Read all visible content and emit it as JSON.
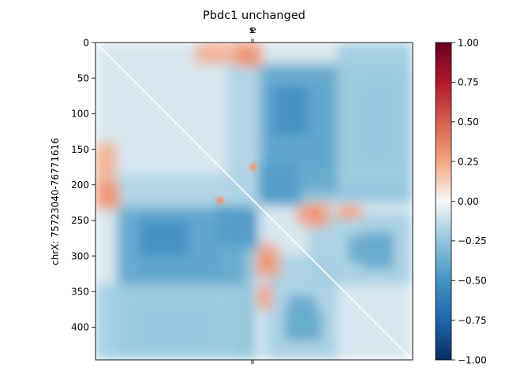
{
  "chart_data": {
    "type": "heatmap",
    "title": "Pbdc1 unchanged",
    "ylabel": "chrX: 75723040-76771616",
    "top_tick_labels": [
      "s",
      "e"
    ],
    "yticks": [
      0,
      50,
      100,
      150,
      200,
      250,
      300,
      350,
      400
    ],
    "ytick_labels": [
      "0",
      "50",
      "100",
      "150",
      "200",
      "250",
      "300",
      "350",
      "400"
    ],
    "matrix_size": 446,
    "colormap": "RdBu_r",
    "colorbar": {
      "vmin": -1.0,
      "vmax": 1.0,
      "ticks": [
        1.0,
        0.75,
        0.5,
        0.25,
        0.0,
        -0.25,
        -0.5,
        -0.75,
        -1.0
      ],
      "tick_labels": [
        "1.00",
        "0.75",
        "0.50",
        "0.25",
        "0.00",
        "−0.25",
        "−0.50",
        "−0.75",
        "−1.00"
      ]
    },
    "diagonal_line_color": "#ffffff",
    "regions": [
      {
        "x": [
          0,
          446
        ],
        "y": [
          0,
          446
        ],
        "value": -0.08
      },
      {
        "x": [
          225,
          446
        ],
        "y": [
          30,
          225
        ],
        "value": -0.28
      },
      {
        "x": [
          235,
          330
        ],
        "y": [
          60,
          175
        ],
        "value": -0.48
      },
      {
        "x": [
          235,
          290
        ],
        "y": [
          190,
          230
        ],
        "value": -0.42
      },
      {
        "x": [
          370,
          425
        ],
        "y": [
          60,
          165
        ],
        "value": -0.36
      },
      {
        "x": [
          30,
          210
        ],
        "y": [
          235,
          340
        ],
        "value": -0.4
      },
      {
        "x": [
          60,
          130
        ],
        "y": [
          250,
          300
        ],
        "value": -0.52
      },
      {
        "x": [
          170,
          225
        ],
        "y": [
          230,
          285
        ],
        "value": -0.46
      },
      {
        "x": [
          0,
          220
        ],
        "y": [
          185,
          225
        ],
        "value": -0.18
      },
      {
        "x": [
          0,
          200
        ],
        "y": [
          340,
          446
        ],
        "value": -0.22
      },
      {
        "x": [
          240,
          340
        ],
        "y": [
          300,
          446
        ],
        "value": -0.2
      },
      {
        "x": [
          270,
          310
        ],
        "y": [
          355,
          420
        ],
        "value": -0.4
      },
      {
        "x": [
          375,
          420
        ],
        "y": [
          265,
          320
        ],
        "value": -0.38
      },
      {
        "x": [
          160,
          225
        ],
        "y": [
          0,
          30
        ],
        "value": 0.2
      },
      {
        "x": [
          195,
          225
        ],
        "y": [
          0,
          30
        ],
        "value": 0.3
      },
      {
        "x": [
          0,
          30
        ],
        "y": [
          140,
          180
        ],
        "value": 0.22
      },
      {
        "x": [
          0,
          35
        ],
        "y": [
          200,
          235
        ],
        "value": 0.3
      },
      {
        "x": [
          290,
          330
        ],
        "y": [
          225,
          260
        ],
        "value": 0.28
      },
      {
        "x": [
          340,
          375
        ],
        "y": [
          228,
          245
        ],
        "value": 0.26
      },
      {
        "x": [
          233,
          250
        ],
        "y": [
          280,
          320
        ],
        "value": 0.28
      },
      {
        "x": [
          233,
          248
        ],
        "y": [
          340,
          375
        ],
        "value": 0.26
      }
    ],
    "hotspots": [
      {
        "x": 222,
        "y": 175,
        "value": 0.3
      },
      {
        "x": 175,
        "y": 222,
        "value": 0.32
      },
      {
        "x": 240,
        "y": 308,
        "value": 0.3
      },
      {
        "x": 308,
        "y": 240,
        "value": 0.3
      }
    ]
  }
}
